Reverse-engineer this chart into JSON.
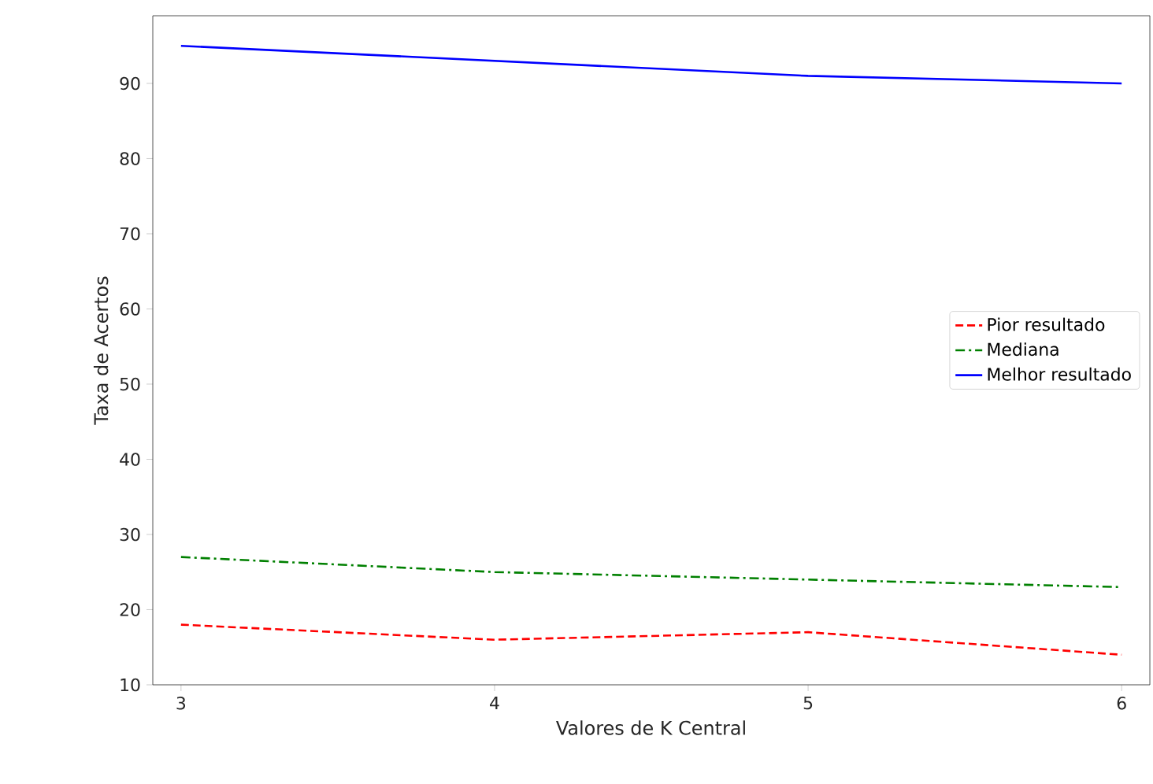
{
  "chart_data": {
    "type": "line",
    "xlabel": "Valores de K Central",
    "ylabel": "Taxa de Acertos",
    "x": [
      3,
      4,
      5,
      6
    ],
    "series": [
      {
        "name": "Pior resultado",
        "color": "#ff0000",
        "values": [
          18,
          16,
          17,
          14
        ],
        "line_style": "dashed"
      },
      {
        "name": "Mediana",
        "color": "#008000",
        "values": [
          27,
          25,
          24,
          23
        ],
        "line_style": "dashdot"
      },
      {
        "name": "Melhor resultado",
        "color": "#0000ff",
        "values": [
          95,
          93,
          91,
          90
        ],
        "line_style": "solid"
      }
    ],
    "xlim": [
      2.91,
      6.09
    ],
    "ylim": [
      10,
      99
    ],
    "xticks": [
      3,
      4,
      5,
      6
    ],
    "yticks": [
      10,
      20,
      30,
      40,
      50,
      60,
      70,
      80,
      90
    ],
    "grid": false,
    "legend": "right",
    "marker": "none"
  }
}
